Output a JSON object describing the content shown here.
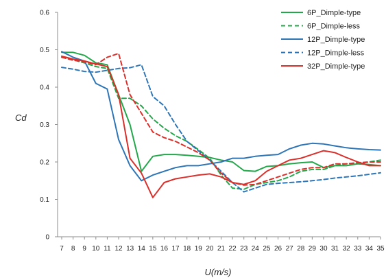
{
  "chart_data": {
    "type": "line",
    "title": "",
    "xlabel": "U(m/s)",
    "ylabel": "Cd",
    "x": [
      7,
      8,
      9,
      10,
      11,
      12,
      13,
      14,
      15,
      16,
      17,
      18,
      19,
      20,
      21,
      22,
      23,
      24,
      25,
      26,
      27,
      28,
      29,
      30,
      31,
      32,
      33,
      34,
      35
    ],
    "xlim": [
      7,
      35
    ],
    "ylim": [
      0,
      0.6
    ],
    "yticks": [
      "0",
      "0.1",
      "0.2",
      "0.3",
      "0.4",
      "0.5",
      "0.6"
    ],
    "grid": false,
    "legend": "top-right",
    "series": [
      {
        "name": "6P_Dimple-type",
        "color": "#22a84a",
        "dash": "solid",
        "values": [
          0.493,
          0.493,
          0.485,
          0.465,
          0.46,
          0.38,
          0.3,
          0.175,
          0.215,
          0.22,
          0.22,
          0.218,
          0.215,
          0.212,
          0.205,
          0.2,
          0.177,
          0.175,
          0.188,
          0.19,
          0.195,
          0.198,
          0.2,
          0.185,
          0.19,
          0.19,
          0.195,
          0.193,
          0.19
        ]
      },
      {
        "name": "6P_Dimple-less",
        "color": "#22a84a",
        "dash": "dashed",
        "values": [
          0.48,
          0.473,
          0.465,
          0.455,
          0.45,
          0.37,
          0.37,
          0.35,
          0.315,
          0.29,
          0.27,
          0.255,
          0.233,
          0.21,
          0.165,
          0.13,
          0.127,
          0.14,
          0.145,
          0.15,
          0.16,
          0.175,
          0.18,
          0.18,
          0.19,
          0.195,
          0.195,
          0.2,
          0.205
        ]
      },
      {
        "name": "12P_Dimple-type",
        "color": "#2e75b6",
        "dash": "solid",
        "values": [
          0.495,
          0.48,
          0.47,
          0.41,
          0.395,
          0.26,
          0.19,
          0.15,
          0.165,
          0.175,
          0.185,
          0.19,
          0.19,
          0.195,
          0.2,
          0.21,
          0.21,
          0.215,
          0.218,
          0.22,
          0.235,
          0.245,
          0.25,
          0.248,
          0.243,
          0.238,
          0.235,
          0.233,
          0.232
        ]
      },
      {
        "name": "12P_Dimple-less",
        "color": "#2e75b6",
        "dash": "dashed",
        "values": [
          0.453,
          0.448,
          0.442,
          0.44,
          0.445,
          0.45,
          0.452,
          0.46,
          0.375,
          0.35,
          0.3,
          0.255,
          0.23,
          0.205,
          0.175,
          0.145,
          0.12,
          0.13,
          0.14,
          0.143,
          0.145,
          0.147,
          0.15,
          0.153,
          0.157,
          0.16,
          0.163,
          0.167,
          0.171
        ]
      },
      {
        "name": "32P_Dimple-type",
        "color": "#d9302b",
        "dash": "solid",
        "values": [
          0.483,
          0.475,
          0.47,
          0.462,
          0.455,
          0.38,
          0.21,
          0.17,
          0.105,
          0.145,
          0.155,
          0.16,
          0.165,
          0.168,
          0.16,
          0.145,
          0.14,
          0.15,
          0.175,
          0.19,
          0.205,
          0.21,
          0.22,
          0.23,
          0.225,
          0.212,
          0.2,
          0.19,
          0.19
        ]
      },
      {
        "name": "",
        "color": "#d9302b",
        "dash": "dashed",
        "values": [
          0.48,
          0.472,
          0.468,
          0.46,
          0.48,
          0.49,
          0.38,
          0.33,
          0.28,
          0.265,
          0.255,
          0.24,
          0.225,
          0.205,
          0.17,
          0.145,
          0.138,
          0.14,
          0.15,
          0.16,
          0.17,
          0.18,
          0.185,
          0.185,
          0.195,
          0.195,
          0.198,
          0.2,
          0.2
        ]
      }
    ]
  }
}
